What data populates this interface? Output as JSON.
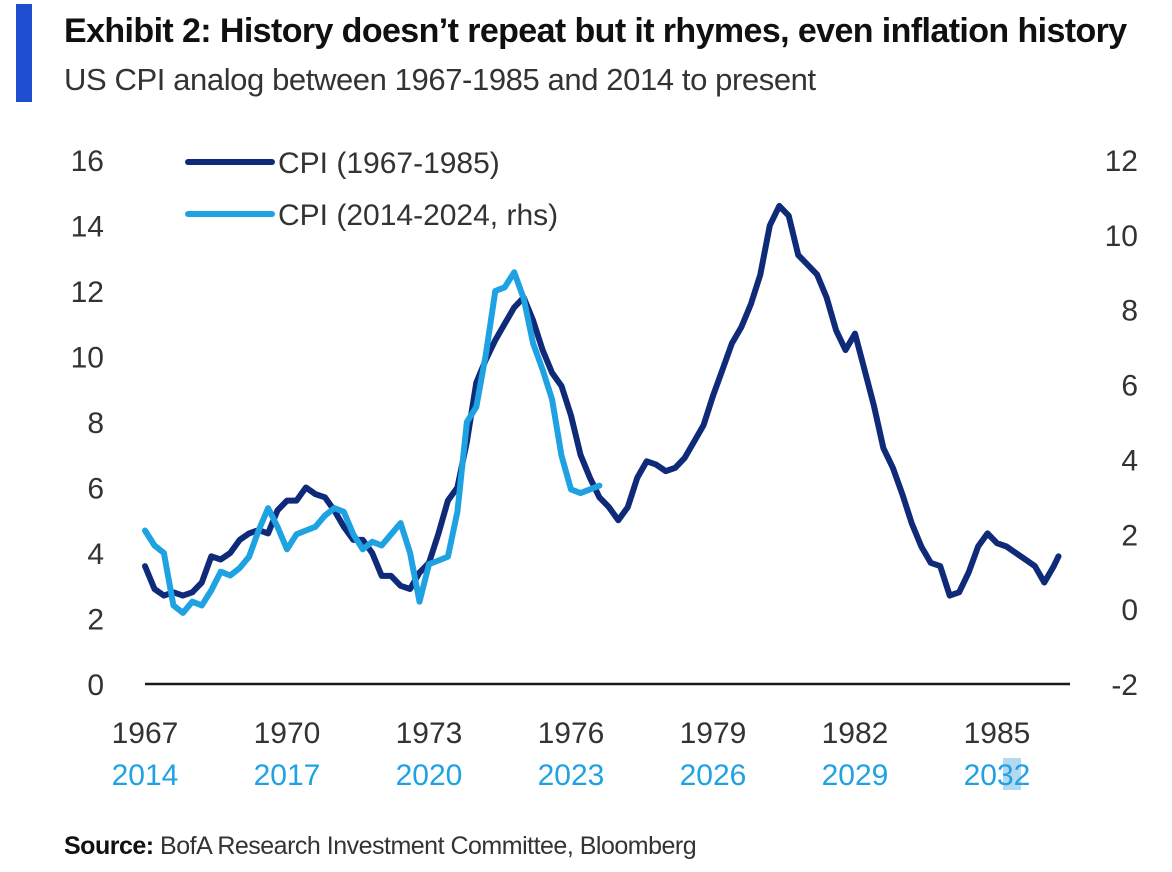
{
  "header": {
    "title": "Exhibit 2: History doesn’t repeat but it rhymes, even inflation history",
    "subtitle": "US CPI analog between 1967-1985 and 2014 to present"
  },
  "footer": {
    "source_label": "Source:",
    "source_text": "BofA Research Investment Committee, Bloomberg"
  },
  "colors": {
    "accent": "#1f4fd0",
    "dark_series": "#0f2a78",
    "light_series": "#1ea2e2",
    "axis": "#333333",
    "highlight": "#b5d8f2"
  },
  "chart_data": {
    "type": "line",
    "title": "",
    "left_axis": {
      "min": 0,
      "max": 16,
      "ticks": [
        "0",
        "2",
        "4",
        "6",
        "8",
        "10",
        "12",
        "14",
        "16"
      ]
    },
    "right_axis": {
      "min": -2,
      "max": 12,
      "ticks": [
        "-2",
        "0",
        "2",
        "4",
        "6",
        "8",
        "10",
        "12"
      ]
    },
    "x_axis": {
      "min": 1967,
      "max": 1986.5,
      "ticks": [
        {
          "x": 1967,
          "top": "1967",
          "bottom": "2014"
        },
        {
          "x": 1970,
          "top": "1970",
          "bottom": "2017"
        },
        {
          "x": 1973,
          "top": "1973",
          "bottom": "2020"
        },
        {
          "x": 1976,
          "top": "1976",
          "bottom": "2023"
        },
        {
          "x": 1979,
          "top": "1979",
          "bottom": "2026"
        },
        {
          "x": 1982,
          "top": "1982",
          "bottom": "2029"
        },
        {
          "x": 1985,
          "top": "1985",
          "bottom": "2032"
        }
      ]
    },
    "legend_position": "top-left",
    "grid": false,
    "series": [
      {
        "name": "CPI (1967-1985)",
        "axis": "left",
        "points": [
          [
            1967.0,
            3.6
          ],
          [
            1967.2,
            2.9
          ],
          [
            1967.4,
            2.7
          ],
          [
            1967.6,
            2.8
          ],
          [
            1967.8,
            2.7
          ],
          [
            1968.0,
            2.8
          ],
          [
            1968.2,
            3.1
          ],
          [
            1968.4,
            3.9
          ],
          [
            1968.6,
            3.8
          ],
          [
            1968.8,
            4.0
          ],
          [
            1969.0,
            4.4
          ],
          [
            1969.2,
            4.6
          ],
          [
            1969.4,
            4.7
          ],
          [
            1969.6,
            4.6
          ],
          [
            1969.8,
            5.3
          ],
          [
            1970.0,
            5.6
          ],
          [
            1970.2,
            5.6
          ],
          [
            1970.4,
            6.0
          ],
          [
            1970.6,
            5.8
          ],
          [
            1970.8,
            5.7
          ],
          [
            1971.0,
            5.3
          ],
          [
            1971.2,
            4.8
          ],
          [
            1971.4,
            4.4
          ],
          [
            1971.6,
            4.4
          ],
          [
            1971.8,
            4.0
          ],
          [
            1972.0,
            3.3
          ],
          [
            1972.2,
            3.3
          ],
          [
            1972.4,
            3.0
          ],
          [
            1972.6,
            2.9
          ],
          [
            1972.8,
            3.4
          ],
          [
            1973.0,
            3.7
          ],
          [
            1973.2,
            4.6
          ],
          [
            1973.4,
            5.6
          ],
          [
            1973.6,
            6.0
          ],
          [
            1973.8,
            7.4
          ],
          [
            1974.0,
            9.2
          ],
          [
            1974.2,
            9.9
          ],
          [
            1974.4,
            10.5
          ],
          [
            1974.6,
            11.0
          ],
          [
            1974.8,
            11.5
          ],
          [
            1975.0,
            11.8
          ],
          [
            1975.2,
            11.1
          ],
          [
            1975.4,
            10.2
          ],
          [
            1975.6,
            9.5
          ],
          [
            1975.8,
            9.1
          ],
          [
            1976.0,
            8.2
          ],
          [
            1976.2,
            7.0
          ],
          [
            1976.4,
            6.3
          ],
          [
            1976.6,
            5.7
          ],
          [
            1976.8,
            5.4
          ],
          [
            1977.0,
            5.0
          ],
          [
            1977.2,
            5.4
          ],
          [
            1977.4,
            6.3
          ],
          [
            1977.6,
            6.8
          ],
          [
            1977.8,
            6.7
          ],
          [
            1978.0,
            6.5
          ],
          [
            1978.2,
            6.6
          ],
          [
            1978.4,
            6.9
          ],
          [
            1978.6,
            7.4
          ],
          [
            1978.8,
            7.9
          ],
          [
            1979.0,
            8.8
          ],
          [
            1979.2,
            9.6
          ],
          [
            1979.4,
            10.4
          ],
          [
            1979.6,
            10.9
          ],
          [
            1979.8,
            11.6
          ],
          [
            1980.0,
            12.5
          ],
          [
            1980.2,
            14.0
          ],
          [
            1980.4,
            14.6
          ],
          [
            1980.6,
            14.3
          ],
          [
            1980.8,
            13.1
          ],
          [
            1981.0,
            12.8
          ],
          [
            1981.2,
            12.5
          ],
          [
            1981.4,
            11.8
          ],
          [
            1981.6,
            10.8
          ],
          [
            1981.8,
            10.2
          ],
          [
            1982.0,
            10.7
          ],
          [
            1982.2,
            9.6
          ],
          [
            1982.4,
            8.5
          ],
          [
            1982.6,
            7.2
          ],
          [
            1982.8,
            6.6
          ],
          [
            1983.0,
            5.8
          ],
          [
            1983.2,
            4.9
          ],
          [
            1983.4,
            4.2
          ],
          [
            1983.6,
            3.7
          ],
          [
            1983.8,
            3.6
          ],
          [
            1984.0,
            2.7
          ],
          [
            1984.2,
            2.8
          ],
          [
            1984.4,
            3.4
          ],
          [
            1984.6,
            4.2
          ],
          [
            1984.8,
            4.6
          ],
          [
            1985.0,
            4.3
          ],
          [
            1985.2,
            4.2
          ],
          [
            1985.4,
            4.0
          ],
          [
            1985.6,
            3.8
          ],
          [
            1985.8,
            3.6
          ],
          [
            1986.0,
            3.1
          ],
          [
            1986.2,
            3.6
          ],
          [
            1986.3,
            3.9
          ]
        ]
      },
      {
        "name": "CPI (2014-2024, rhs)",
        "axis": "right",
        "points": [
          [
            1967.0,
            2.1
          ],
          [
            1967.2,
            1.7
          ],
          [
            1967.4,
            1.5
          ],
          [
            1967.6,
            0.1
          ],
          [
            1967.8,
            -0.1
          ],
          [
            1968.0,
            0.2
          ],
          [
            1968.2,
            0.1
          ],
          [
            1968.4,
            0.5
          ],
          [
            1968.6,
            1.0
          ],
          [
            1968.8,
            0.9
          ],
          [
            1969.0,
            1.1
          ],
          [
            1969.2,
            1.4
          ],
          [
            1969.4,
            2.1
          ],
          [
            1969.6,
            2.7
          ],
          [
            1969.8,
            2.2
          ],
          [
            1970.0,
            1.6
          ],
          [
            1970.2,
            2.0
          ],
          [
            1970.4,
            2.1
          ],
          [
            1970.6,
            2.2
          ],
          [
            1970.8,
            2.5
          ],
          [
            1971.0,
            2.7
          ],
          [
            1971.2,
            2.6
          ],
          [
            1971.4,
            2.0
          ],
          [
            1971.6,
            1.6
          ],
          [
            1971.8,
            1.8
          ],
          [
            1972.0,
            1.7
          ],
          [
            1972.2,
            2.0
          ],
          [
            1972.4,
            2.3
          ],
          [
            1972.6,
            1.5
          ],
          [
            1972.8,
            0.2
          ],
          [
            1973.0,
            1.2
          ],
          [
            1973.2,
            1.3
          ],
          [
            1973.4,
            1.4
          ],
          [
            1973.6,
            2.6
          ],
          [
            1973.8,
            5.0
          ],
          [
            1974.0,
            5.4
          ],
          [
            1974.2,
            6.8
          ],
          [
            1974.4,
            8.5
          ],
          [
            1974.6,
            8.6
          ],
          [
            1974.8,
            9.0
          ],
          [
            1975.0,
            8.3
          ],
          [
            1975.2,
            7.1
          ],
          [
            1975.4,
            6.4
          ],
          [
            1975.6,
            5.6
          ],
          [
            1975.8,
            4.1
          ],
          [
            1976.0,
            3.2
          ],
          [
            1976.2,
            3.1
          ],
          [
            1976.4,
            3.2
          ],
          [
            1976.6,
            3.3
          ]
        ]
      }
    ]
  }
}
